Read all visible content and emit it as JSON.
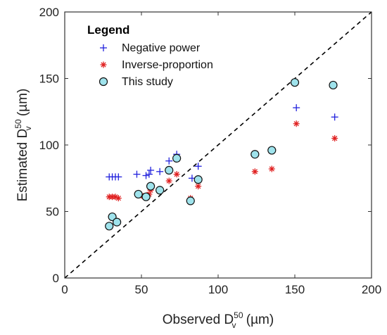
{
  "chart_data": {
    "type": "scatter",
    "xlabel": {
      "main": "Observed D",
      "sup": "50",
      "sub": "v",
      "unit": " (µm)"
    },
    "ylabel": {
      "main": "Estimated D",
      "sup": "50",
      "sub": "v",
      "unit": " (µm)"
    },
    "xlim": [
      0,
      200
    ],
    "ylim": [
      0,
      200
    ],
    "xticks": [
      "0",
      "50",
      "100",
      "150",
      "200"
    ],
    "yticks": [
      "0",
      "50",
      "100",
      "150",
      "200"
    ],
    "grid": false,
    "reference_line": {
      "type": "1:1",
      "style": "dashed",
      "color": "#000000"
    },
    "legend": {
      "title": "Legend",
      "placement": "top-left",
      "entries": [
        "Negative power",
        "Inverse-proportion",
        "This study"
      ]
    },
    "series": [
      {
        "name": "Negative power",
        "marker": "plus",
        "color": "#2222dd",
        "points": [
          [
            29,
            76
          ],
          [
            31,
            76
          ],
          [
            33,
            76
          ],
          [
            35,
            76
          ],
          [
            47,
            78
          ],
          [
            53,
            77
          ],
          [
            55,
            78
          ],
          [
            56,
            81
          ],
          [
            62,
            80
          ],
          [
            68,
            88
          ],
          [
            73,
            93
          ],
          [
            87,
            84
          ],
          [
            83,
            75
          ],
          [
            124,
            93
          ],
          [
            151,
            128
          ],
          [
            176,
            121
          ]
        ]
      },
      {
        "name": "Inverse-proportion",
        "marker": "asterisk",
        "color": "#e02020",
        "points": [
          [
            29,
            61
          ],
          [
            31,
            61
          ],
          [
            33,
            61
          ],
          [
            35,
            60
          ],
          [
            50,
            62
          ],
          [
            55,
            63
          ],
          [
            56,
            66
          ],
          [
            68,
            73
          ],
          [
            73,
            78
          ],
          [
            82,
            60
          ],
          [
            87,
            69
          ],
          [
            124,
            80
          ],
          [
            135,
            82
          ],
          [
            151,
            116
          ],
          [
            176,
            105
          ]
        ]
      },
      {
        "name": "This study",
        "marker": "circle",
        "color": "#9fe3ec",
        "edge_color": "#111111",
        "points": [
          [
            29,
            39
          ],
          [
            31,
            46
          ],
          [
            34,
            42
          ],
          [
            48,
            63
          ],
          [
            53,
            61
          ],
          [
            56,
            69
          ],
          [
            62,
            66
          ],
          [
            68,
            81
          ],
          [
            73,
            90
          ],
          [
            82,
            58
          ],
          [
            87,
            74
          ],
          [
            124,
            93
          ],
          [
            135,
            96
          ],
          [
            150,
            147
          ],
          [
            175,
            145
          ]
        ]
      }
    ]
  }
}
